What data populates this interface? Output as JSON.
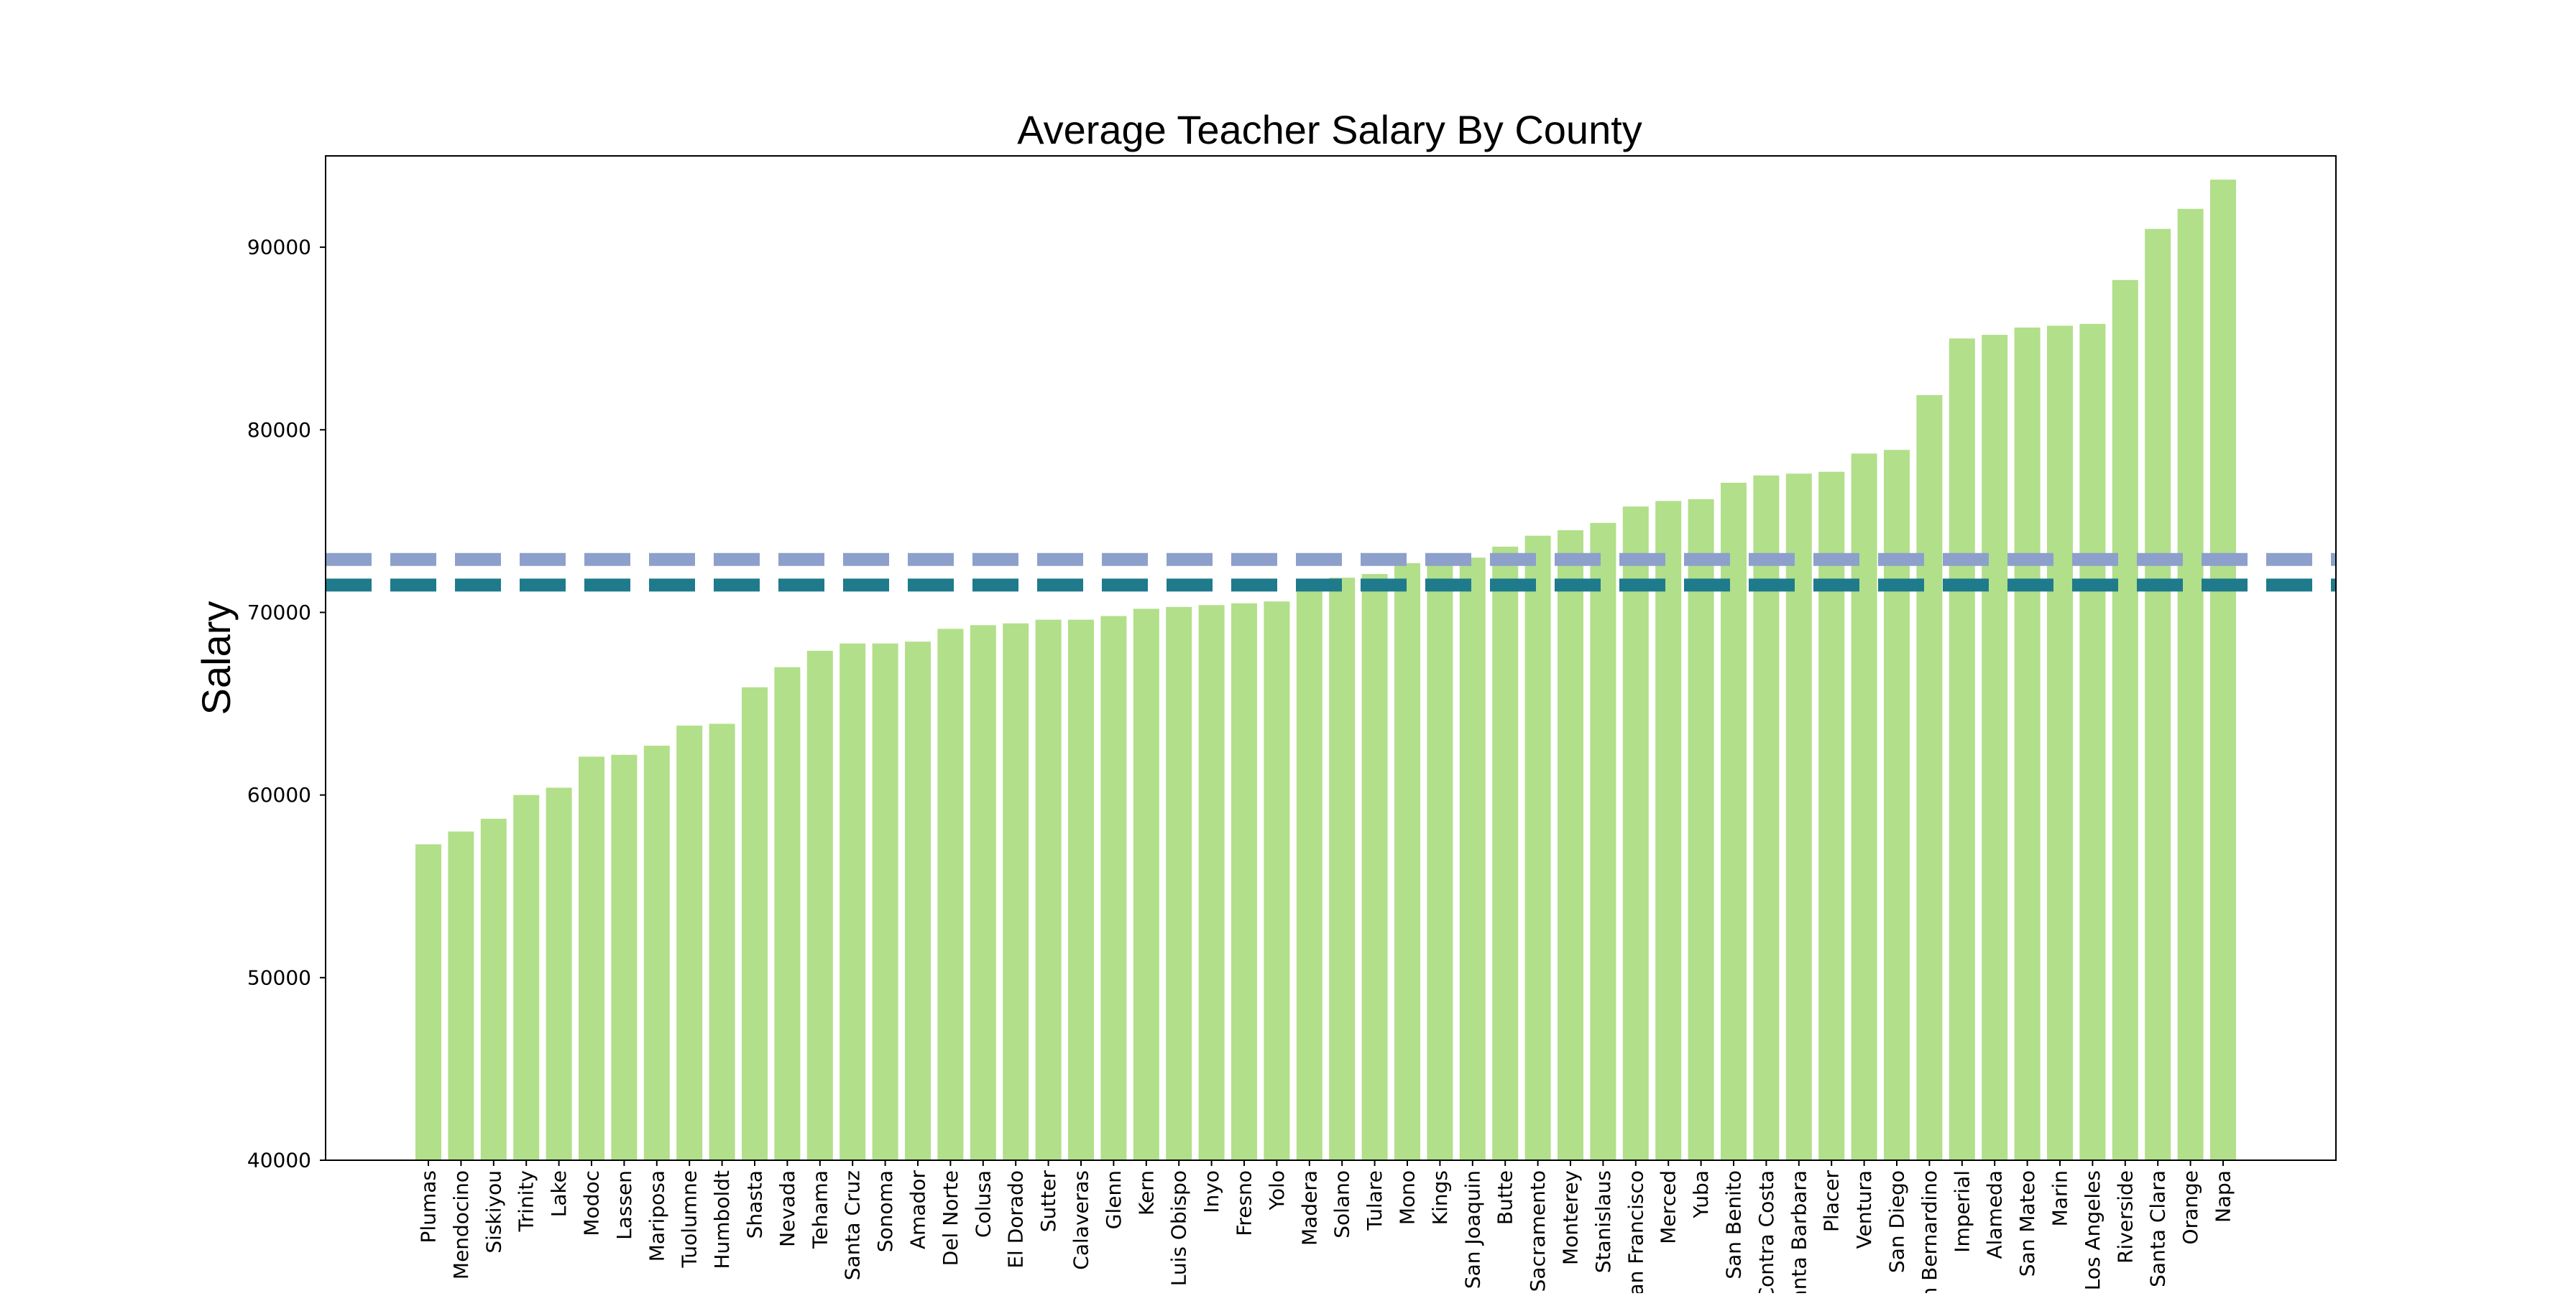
{
  "chart_data": {
    "type": "bar",
    "title": "Average Teacher Salary By County",
    "xlabel": "",
    "ylabel": "Salary",
    "ylim": [
      40000,
      95000
    ],
    "yticks": [
      40000,
      50000,
      60000,
      70000,
      80000,
      90000
    ],
    "grid": false,
    "bar_color": "#b2df8a",
    "categories": [
      "Plumas",
      "Mendocino",
      "Siskiyou",
      "Trinity",
      "Lake",
      "Modoc",
      "Lassen",
      "Mariposa",
      "Tuolumne",
      "Humboldt",
      "Shasta",
      "Nevada",
      "Tehama",
      "Santa Cruz",
      "Sonoma",
      "Amador",
      "Del Norte",
      "Colusa",
      "El Dorado",
      "Sutter",
      "Calaveras",
      "Glenn",
      "Kern",
      "San Luis Obispo",
      "Inyo",
      "Fresno",
      "Yolo",
      "Madera",
      "Solano",
      "Tulare",
      "Mono",
      "Kings",
      "San Joaquin",
      "Butte",
      "Sacramento",
      "Monterey",
      "Stanislaus",
      "San Francisco",
      "Merced",
      "Yuba",
      "San Benito",
      "Contra Costa",
      "Santa Barbara",
      "Placer",
      "Ventura",
      "San Diego",
      "San Bernardino",
      "Imperial",
      "Alameda",
      "San Mateo",
      "Marin",
      "Los Angeles",
      "Riverside",
      "Santa Clara",
      "Orange",
      "Napa"
    ],
    "values": [
      57300,
      58000,
      58700,
      60000,
      60400,
      62100,
      62200,
      62700,
      63800,
      63900,
      65900,
      67000,
      67900,
      68300,
      68300,
      68400,
      69100,
      69300,
      69400,
      69600,
      69600,
      69800,
      70200,
      70300,
      70400,
      70500,
      70600,
      71800,
      71900,
      72100,
      72700,
      72900,
      73000,
      73600,
      74200,
      74500,
      74900,
      75800,
      76100,
      76200,
      77100,
      77500,
      77600,
      77700,
      78700,
      78900,
      81900,
      85000,
      85200,
      85600,
      85700,
      85800,
      88200,
      91000,
      92100,
      93700
    ],
    "reference_lines": [
      {
        "value": 72900,
        "color": "#8da0cb",
        "style": "dashed"
      },
      {
        "value": 71500,
        "color": "#1f7a8c",
        "style": "dashed"
      }
    ]
  }
}
